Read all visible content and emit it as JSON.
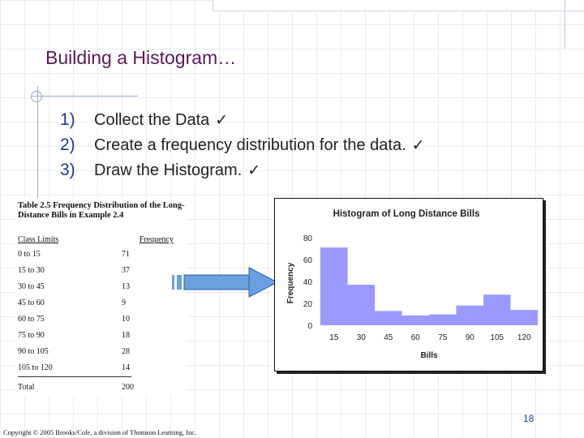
{
  "slide": {
    "title": "Building a Histogram…",
    "steps": [
      {
        "num": "1)",
        "text": "Collect the Data",
        "check": "✓"
      },
      {
        "num": "2)",
        "text": "Create a frequency distribution for the data.",
        "check": "✓"
      },
      {
        "num": "3)",
        "text": "Draw the Histogram.",
        "check": "✓"
      }
    ],
    "page_number": "18",
    "copyright": "Copyright © 2005 Brooks/Cole, a division of Thomson Learning, Inc."
  },
  "table": {
    "caption": "Table 2.5 Frequency Distribution of the Long-Distance Bills in Example 2.4",
    "col_limits": "Class Limits",
    "col_frequency": "Frequency",
    "rows": [
      {
        "limits": "0 to 15",
        "freq": "71"
      },
      {
        "limits": "15 to 30",
        "freq": "37"
      },
      {
        "limits": "30 to 45",
        "freq": "13"
      },
      {
        "limits": "45 to 60",
        "freq": "9"
      },
      {
        "limits": "60 to 75",
        "freq": "10"
      },
      {
        "limits": "75 to 90",
        "freq": "18"
      },
      {
        "limits": "90 to 105",
        "freq": "28"
      },
      {
        "limits": "105 to 120",
        "freq": "14"
      }
    ],
    "total_label": "Total",
    "total_value": "200"
  },
  "colors": {
    "bar_fill": "#9999ff",
    "arrow_fill": "#6aa0e0",
    "title_color": "#5a1a5a",
    "step_number_color": "#1f3a8a"
  },
  "chart_data": {
    "type": "bar",
    "title": "Histogram of Long Distance Bills",
    "xlabel": "Bills",
    "ylabel": "Frequency",
    "bin_edges": [
      0,
      15,
      30,
      45,
      60,
      75,
      90,
      105,
      120
    ],
    "x_tick_labels": [
      "15",
      "30",
      "45",
      "60",
      "75",
      "90",
      "105",
      "120"
    ],
    "values": [
      71,
      37,
      13,
      9,
      10,
      18,
      28,
      14
    ],
    "y_ticks": [
      0,
      20,
      40,
      60,
      80
    ],
    "ylim": [
      0,
      80
    ],
    "grid": false
  }
}
